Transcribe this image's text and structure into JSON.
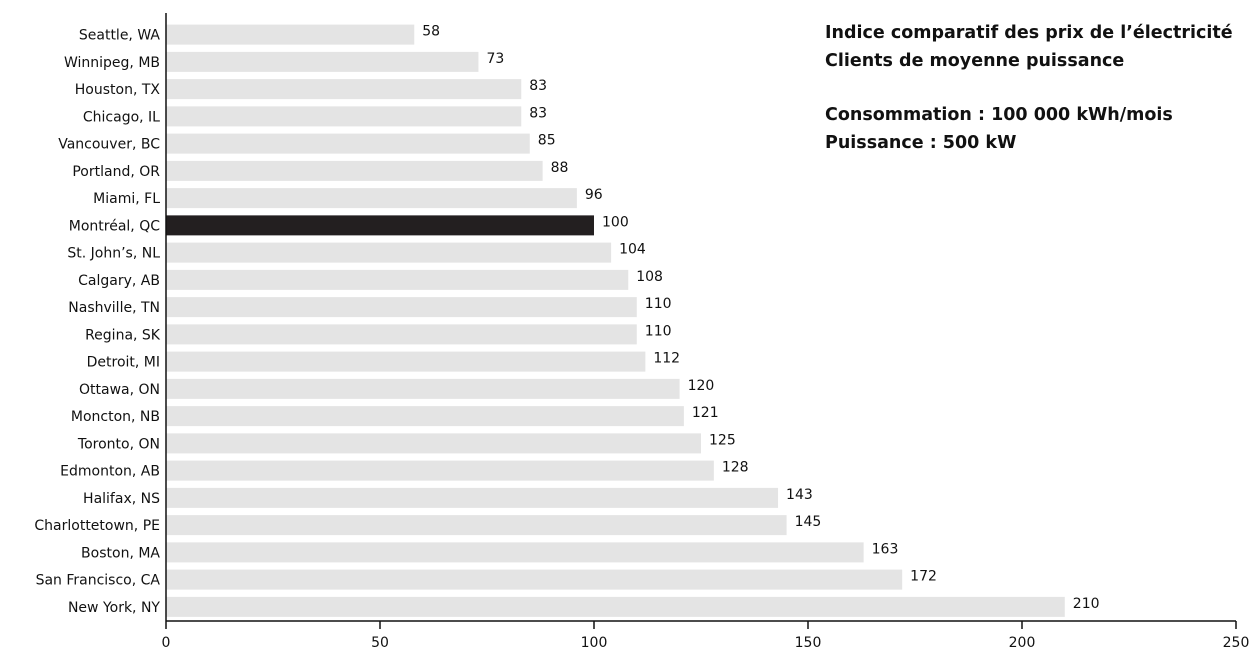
{
  "chart_data": {
    "type": "bar",
    "orientation": "horizontal",
    "title": "Indice comparatif des prix de l’électricité",
    "subtitle": "Clients de moyenne puissance",
    "notes": [
      "Consommation : 100 000 kWh/mois",
      "Puissance : 500 kW"
    ],
    "categories": [
      "Seattle, WA",
      "Winnipeg, MB",
      "Houston, TX",
      "Chicago, IL",
      "Vancouver, BC",
      "Portland, OR",
      "Miami, FL",
      "Montréal, QC",
      "St. John’s, NL",
      "Calgary, AB",
      "Nashville, TN",
      "Regina, SK",
      "Detroit, MI",
      "Ottawa, ON",
      "Moncton, NB",
      "Toronto, ON",
      "Edmonton, AB",
      "Halifax, NS",
      "Charlottetown, PE",
      "Boston, MA",
      "San Francisco, CA",
      "New York, NY"
    ],
    "values": [
      58,
      73,
      83,
      83,
      85,
      88,
      96,
      100,
      104,
      108,
      110,
      110,
      112,
      120,
      121,
      125,
      128,
      143,
      145,
      163,
      172,
      210
    ],
    "highlight_category": "Montréal, QC",
    "xlim": [
      0,
      250
    ],
    "xticks": [
      "0",
      "50",
      "100",
      "150",
      "200",
      "250"
    ],
    "xlabel": "",
    "ylabel": "",
    "grid": false,
    "legend": "none",
    "colors": {
      "bar": "#e4e4e4",
      "highlight": "#231f20",
      "axis": "#111111",
      "text": "#111111"
    }
  }
}
